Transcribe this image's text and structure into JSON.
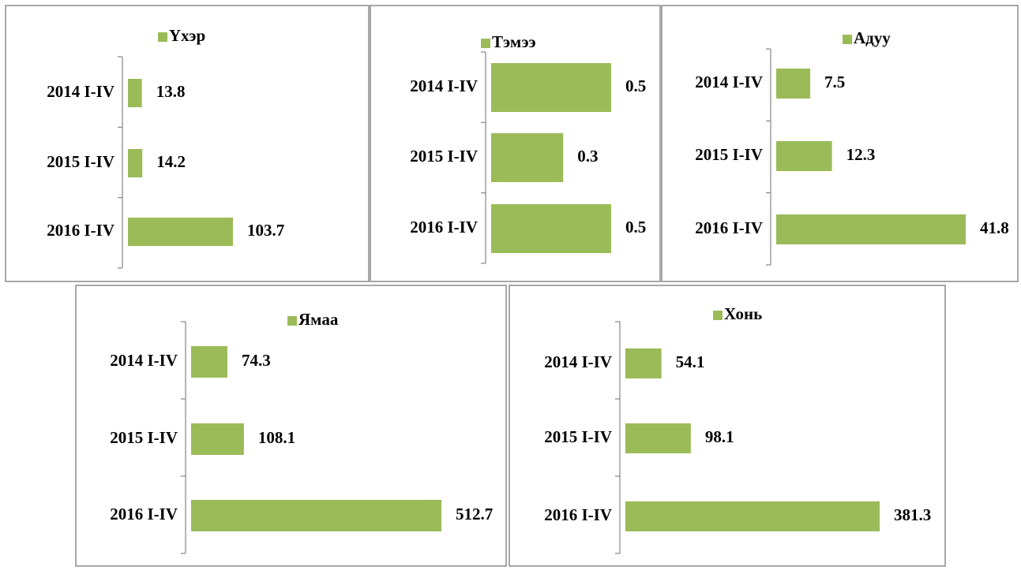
{
  "chart_data": [
    {
      "type": "bar",
      "orientation": "horizontal",
      "categories": [
        "2014 I-IV",
        "2015 I-IV",
        "2016 I-IV"
      ],
      "series": [
        {
          "name": "Үхэр",
          "color": "#9bbb59",
          "values": [
            13.8,
            14.2,
            103.7
          ]
        }
      ]
    },
    {
      "type": "bar",
      "orientation": "horizontal",
      "categories": [
        "2014 I-IV",
        "2015 I-IV",
        "2016 I-IV"
      ],
      "series": [
        {
          "name": "Тэмээ",
          "color": "#9bbb59",
          "values": [
            0.5,
            0.3,
            0.5
          ]
        }
      ]
    },
    {
      "type": "bar",
      "orientation": "horizontal",
      "categories": [
        "2014 I-IV",
        "2015 I-IV",
        "2016 I-IV"
      ],
      "series": [
        {
          "name": "Адуу",
          "color": "#9bbb59",
          "values": [
            7.5,
            12.3,
            41.8
          ]
        }
      ]
    },
    {
      "type": "bar",
      "orientation": "horizontal",
      "categories": [
        "2014 I-IV",
        "2015 I-IV",
        "2016 I-IV"
      ],
      "series": [
        {
          "name": "Ямаа",
          "color": "#9bbb59",
          "values": [
            74.3,
            108.1,
            512.7
          ]
        }
      ]
    },
    {
      "type": "bar",
      "orientation": "horizontal",
      "categories": [
        "2014 I-IV",
        "2015 I-IV",
        "2016 I-IV"
      ],
      "series": [
        {
          "name": "Хонь",
          "color": "#9bbb59",
          "values": [
            54.1,
            98.1,
            381.3
          ]
        }
      ]
    }
  ]
}
